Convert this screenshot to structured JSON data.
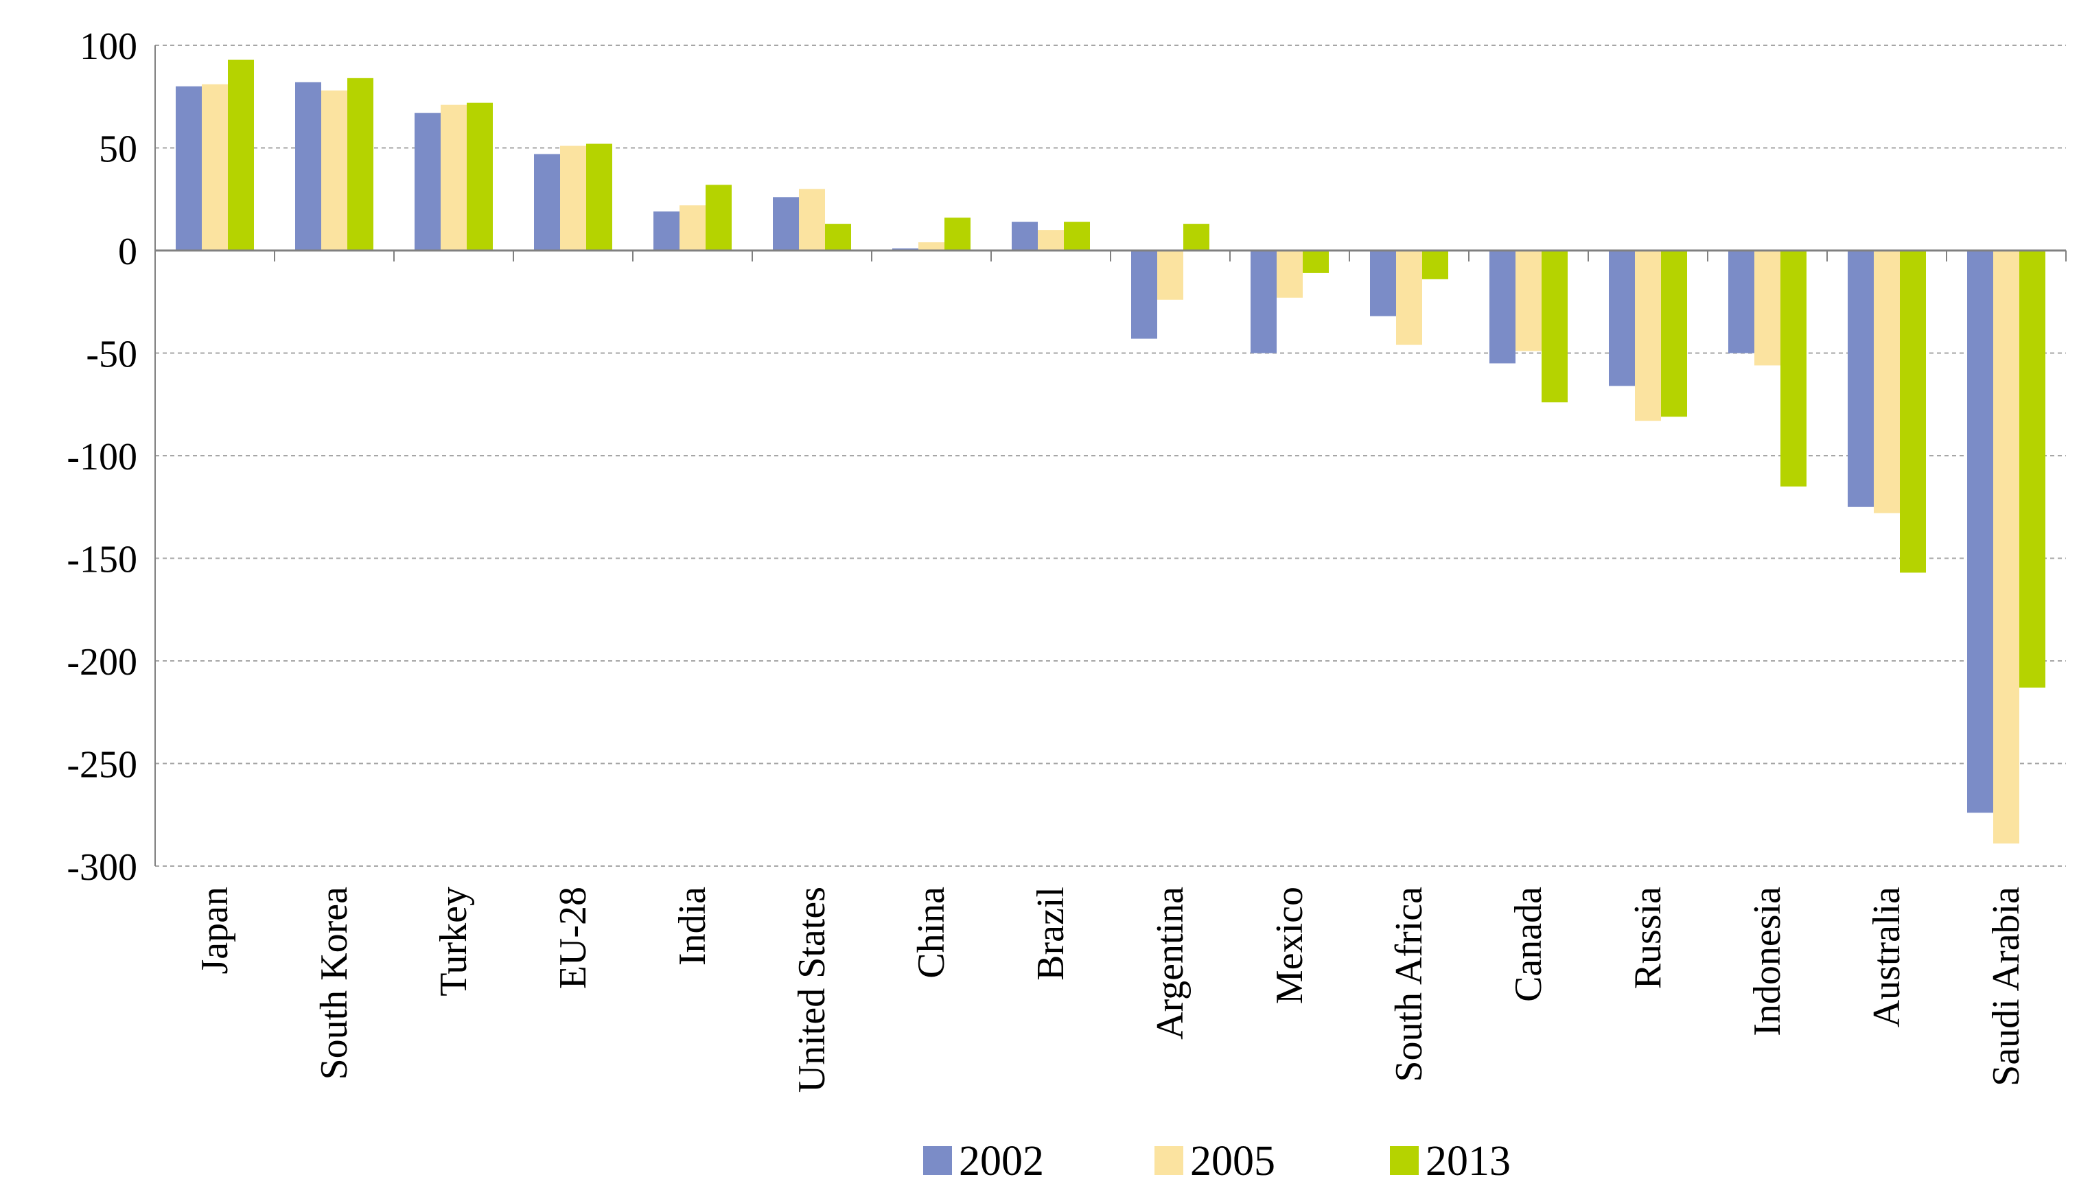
{
  "chart_data": {
    "type": "bar",
    "title": "",
    "xlabel": "",
    "ylabel": "",
    "ylim": [
      -300,
      100
    ],
    "yticks": [
      100,
      50,
      0,
      -50,
      -100,
      -150,
      -200,
      -250,
      -300
    ],
    "ytick_labels": [
      "100",
      "50",
      "0",
      "-50",
      "-100",
      "-150",
      "-200",
      "-250",
      "-300"
    ],
    "grid": true,
    "legend_position": "bottom",
    "categories": [
      "Japan",
      "South Korea",
      "Turkey",
      "EU-28",
      "India",
      "United States",
      "China",
      "Brazil",
      "Argentina",
      "Mexico",
      "South Africa",
      "Canada",
      "Russia",
      "Indonesia",
      "Australia",
      "Saudi Arabia"
    ],
    "series": [
      {
        "name": "2002",
        "color": "#7b8cc7",
        "values": [
          80,
          82,
          67,
          47,
          19,
          26,
          1,
          14,
          -43,
          -50,
          -32,
          -55,
          -66,
          -50,
          -125,
          -274
        ]
      },
      {
        "name": "2005",
        "color": "#fbe3a0",
        "values": [
          81,
          78,
          71,
          51,
          22,
          30,
          4,
          10,
          -24,
          -23,
          -46,
          -49,
          -83,
          -56,
          -128,
          -289
        ]
      },
      {
        "name": "2013",
        "color": "#b5d300",
        "values": [
          93,
          84,
          72,
          52,
          32,
          13,
          16,
          14,
          13,
          -11,
          -14,
          -74,
          -81,
          -115,
          -157,
          -213
        ]
      }
    ]
  }
}
